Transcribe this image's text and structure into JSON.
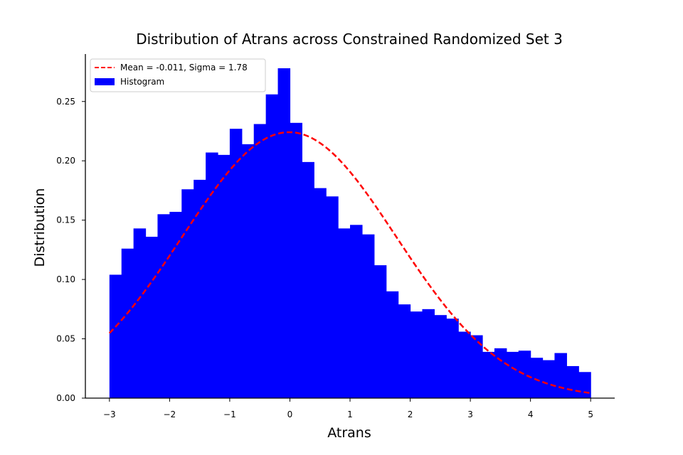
{
  "chart_data": {
    "type": "bar",
    "title": "Distribution of Atrans across Constrained Randomized Set 3",
    "xlabel": "Atrans",
    "ylabel": "Distribution",
    "xlim": [
      -3.4,
      5.4
    ],
    "ylim": [
      0,
      0.29
    ],
    "xticks": [
      -3,
      -2,
      -1,
      0,
      1,
      2,
      3,
      4,
      5
    ],
    "yticks": [
      0.0,
      0.05,
      0.1,
      0.15,
      0.2,
      0.25
    ],
    "bin_start": -3,
    "bin_width": 0.2,
    "values": [
      0.104,
      0.126,
      0.143,
      0.136,
      0.155,
      0.157,
      0.176,
      0.184,
      0.207,
      0.205,
      0.227,
      0.214,
      0.231,
      0.256,
      0.278,
      0.232,
      0.199,
      0.177,
      0.17,
      0.143,
      0.146,
      0.138,
      0.112,
      0.09,
      0.079,
      0.073,
      0.075,
      0.07,
      0.067,
      0.056,
      0.053,
      0.039,
      0.042,
      0.039,
      0.04,
      0.034,
      0.032,
      0.038,
      0.027,
      0.022
    ],
    "fit": {
      "type": "normal",
      "mean": -0.011,
      "sigma": 1.78,
      "x_range": [
        -3,
        5
      ]
    },
    "legend": {
      "position": "upper-left",
      "entries": [
        "Mean = -0.011, Sigma = 1.78",
        "Histogram"
      ]
    },
    "colors": {
      "bars": "#0000ff",
      "fit": "#ff0000"
    },
    "grid": false
  }
}
